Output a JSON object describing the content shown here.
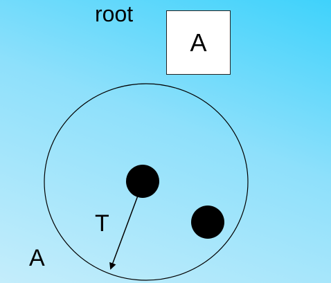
{
  "root": {
    "label": "root",
    "box_text": "A"
  },
  "set": {
    "label": "A"
  },
  "edge": {
    "label": "T"
  },
  "nodes": {
    "count": 2
  }
}
